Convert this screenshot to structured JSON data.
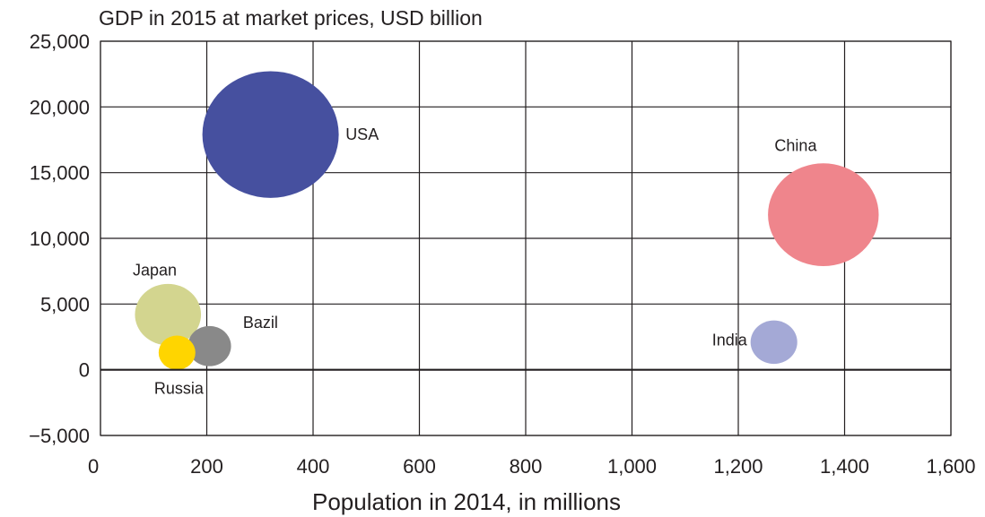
{
  "chart_data": {
    "type": "scatter",
    "title": "GDP in 2015 at market prices, USD billion",
    "xlabel": "Population in 2014, in millions",
    "ylabel": "",
    "xlim": [
      0,
      1600
    ],
    "ylim": [
      -5000,
      25000
    ],
    "x_ticks": [
      {
        "value": 0,
        "label": "0"
      },
      {
        "value": 200,
        "label": "200"
      },
      {
        "value": 400,
        "label": "400"
      },
      {
        "value": 600,
        "label": "600"
      },
      {
        "value": 800,
        "label": "800"
      },
      {
        "value": 1000,
        "label": "1,000"
      },
      {
        "value": 1200,
        "label": "1,200"
      },
      {
        "value": 1400,
        "label": "1,400"
      },
      {
        "value": 1600,
        "label": "1,600"
      }
    ],
    "y_ticks": [
      {
        "value": 25000,
        "label": "25,000"
      },
      {
        "value": 20000,
        "label": "20,000"
      },
      {
        "value": 15000,
        "label": "15,000"
      },
      {
        "value": 10000,
        "label": "10,000"
      },
      {
        "value": 5000,
        "label": "5,000"
      },
      {
        "value": 0,
        "label": "0"
      },
      {
        "value": -5000,
        "label": "−5,000"
      }
    ],
    "grid": true,
    "legend": "none",
    "points": [
      {
        "label": "USA",
        "x": 320,
        "y": 17900,
        "size": 17900,
        "color": "#46509f"
      },
      {
        "label": "China",
        "x": 1360,
        "y": 11800,
        "size": 11800,
        "color": "#ef858c"
      },
      {
        "label": "Japan",
        "x": 127,
        "y": 4200,
        "size": 4200,
        "color": "#d3d58f"
      },
      {
        "label": "Bazil",
        "x": 205,
        "y": 1800,
        "size": 1800,
        "color": "#898989"
      },
      {
        "label": "Russia",
        "x": 144,
        "y": 1300,
        "size": 1300,
        "color": "#ffd500"
      },
      {
        "label": "India",
        "x": 1267,
        "y": 2100,
        "size": 2100,
        "color": "#a4a9d6"
      }
    ]
  }
}
